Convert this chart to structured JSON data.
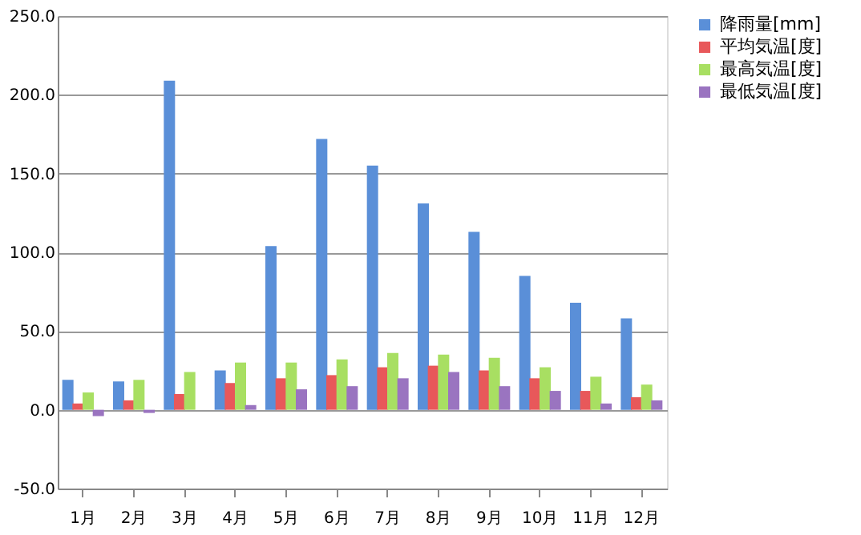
{
  "chart_data": {
    "type": "bar",
    "categories": [
      "1月",
      "2月",
      "3月",
      "4月",
      "5月",
      "6月",
      "7月",
      "8月",
      "9月",
      "10月",
      "11月",
      "12月"
    ],
    "series": [
      {
        "name": "降雨量[mm]",
        "color": "#5a8fd8",
        "values": [
          19,
          18,
          209,
          25,
          104,
          172,
          155,
          131,
          113,
          85,
          68,
          58
        ]
      },
      {
        "name": "平均気温[度]",
        "color": "#e8585a",
        "values": [
          4,
          6,
          10,
          17,
          20,
          22,
          27,
          28,
          25,
          20,
          12,
          8
        ]
      },
      {
        "name": "最高気温[度]",
        "color": "#a8df62",
        "values": [
          11,
          19,
          24,
          30,
          30,
          32,
          36,
          35,
          33,
          27,
          21,
          16
        ]
      },
      {
        "name": "最低気温[度]",
        "color": "#9a74c0",
        "values": [
          -4,
          -2,
          0,
          3,
          13,
          15,
          20,
          24,
          15,
          12,
          4,
          6
        ]
      }
    ],
    "ylim": [
      -50,
      250
    ],
    "yticks": [
      {
        "value": -50,
        "label": "-50.0"
      },
      {
        "value": 0,
        "label": "0.0"
      },
      {
        "value": 50,
        "label": "50.0"
      },
      {
        "value": 100,
        "label": "100.0"
      },
      {
        "value": 150,
        "label": "150.0"
      },
      {
        "value": 200,
        "label": "200.0"
      },
      {
        "value": 250,
        "label": "250.0"
      }
    ],
    "grid": "y",
    "legend": "right"
  }
}
